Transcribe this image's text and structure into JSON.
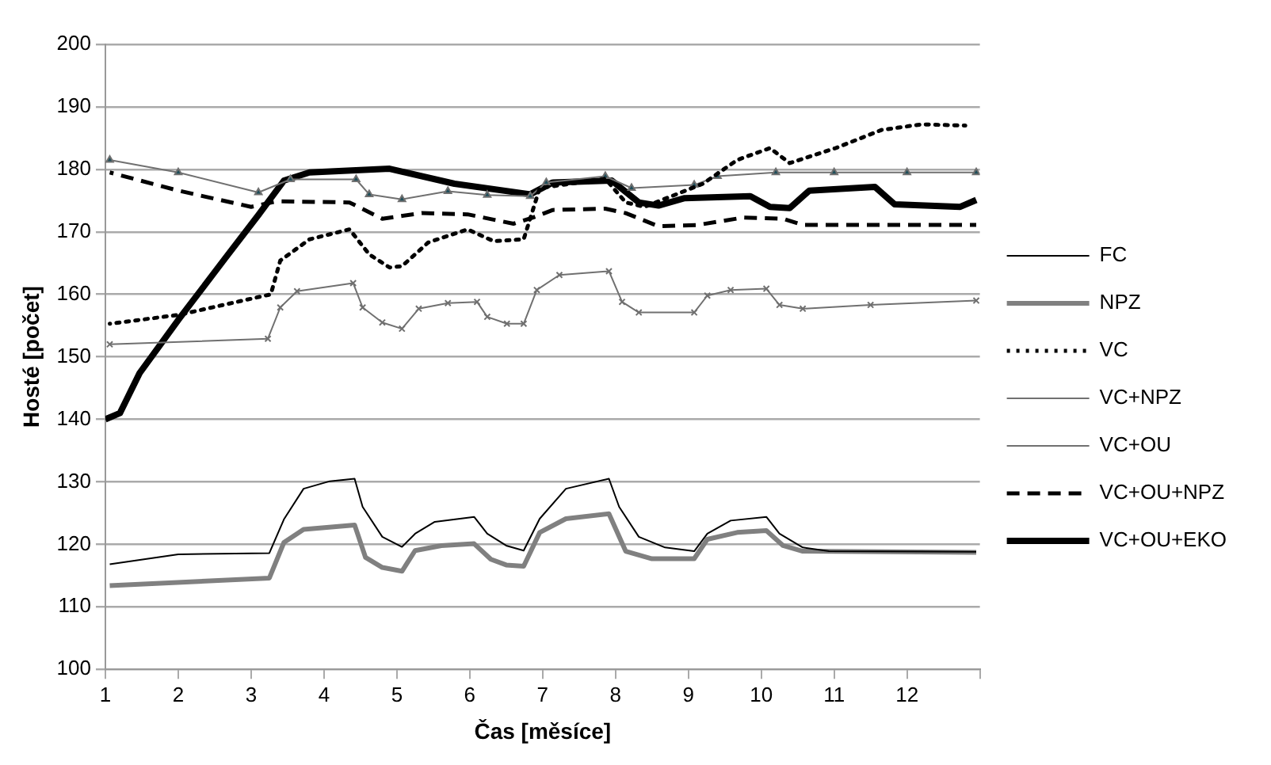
{
  "chart_data": {
    "type": "line",
    "xlabel": "Čas [měsíce]",
    "ylabel": "Hosté [počet]",
    "xlim": [
      1,
      13
    ],
    "ylim": [
      100,
      200
    ],
    "xticks": [
      1,
      2,
      3,
      4,
      5,
      6,
      7,
      8,
      9,
      10,
      11,
      12,
      {
        "value": 13,
        "label": null
      }
    ],
    "yticks": [
      100,
      110,
      120,
      130,
      140,
      150,
      160,
      170,
      180,
      190,
      200
    ],
    "grid": "y",
    "legend": "right",
    "marker": "none",
    "series": [
      {
        "name": "FC",
        "color": "#000000",
        "line_style": "solid",
        "x": [
          1.06,
          2,
          3.25,
          3.45,
          3.72,
          4.08,
          4.42,
          4.53,
          4.8,
          5.07,
          5.25,
          5.52,
          6.06,
          6.24,
          6.5,
          6.74,
          6.96,
          7.32,
          7.91,
          8.05,
          8.32,
          8.68,
          9.08,
          9.26,
          9.58,
          10.07,
          10.25,
          10.57,
          10.93,
          12.95
        ],
        "values": [
          116.8,
          118.4,
          118.6,
          124,
          128.9,
          130.1,
          130.5,
          126,
          121.2,
          119.6,
          121.7,
          123.6,
          124.4,
          121.7,
          119.8,
          119,
          124.1,
          128.9,
          130.5,
          126,
          121.2,
          119.5,
          118.9,
          121.7,
          123.8,
          124.4,
          121.7,
          119.5,
          118.9,
          118.8
        ]
      },
      {
        "name": "NPZ",
        "color": "#808080",
        "line_style": "solid",
        "x": [
          1.06,
          3.25,
          3.45,
          3.72,
          4.42,
          4.57,
          4.8,
          5.07,
          5.25,
          5.61,
          6.06,
          6.29,
          6.5,
          6.74,
          6.96,
          7.32,
          7.91,
          8.14,
          8.5,
          9.08,
          9.26,
          9.67,
          10.07,
          10.3,
          10.57,
          12.95
        ],
        "values": [
          113.4,
          114.6,
          120.3,
          122.4,
          123.1,
          117.9,
          116.3,
          115.7,
          119,
          119.8,
          120.1,
          117.6,
          116.7,
          116.5,
          121.9,
          124.1,
          124.9,
          118.9,
          117.7,
          117.7,
          120.8,
          121.9,
          122.2,
          119.8,
          118.9,
          118.7
        ]
      },
      {
        "name": "VC",
        "color": "#000000",
        "line_style": "dotted",
        "x": [
          1.06,
          2,
          3.27,
          3.4,
          3.8,
          4.35,
          4.62,
          4.9,
          5.07,
          5.43,
          5.97,
          6.33,
          6.74,
          6.96,
          7.86,
          8.14,
          8.4,
          9.2,
          9.67,
          10.12,
          10.39,
          11.02,
          11.65,
          12.2,
          12.8
        ],
        "values": [
          155.3,
          156.7,
          160,
          165.4,
          168.8,
          170.4,
          166.4,
          164.3,
          164.5,
          168.3,
          170.4,
          168.5,
          168.8,
          177,
          178.5,
          174.7,
          174,
          177.7,
          181.5,
          183.4,
          181,
          183.4,
          186.3,
          187.2,
          187
        ]
      },
      {
        "name": "VC+NPZ",
        "color": "#707070",
        "line_style": "solid",
        "marker": "triangle",
        "x": [
          1.06,
          2,
          3.1,
          3.54,
          4.44,
          4.62,
          5.07,
          5.7,
          6.24,
          6.83,
          7.05,
          7.86,
          8.22,
          9.08,
          9.4,
          10.2,
          11,
          12,
          12.95
        ],
        "values": [
          181.5,
          179.5,
          176.3,
          178.4,
          178.4,
          176,
          175.2,
          176.5,
          175.9,
          175.7,
          177.9,
          178.9,
          177,
          177.5,
          178.9,
          179.5,
          179.5,
          179.5,
          179.5
        ]
      },
      {
        "name": "VC+OU",
        "color": "#707070",
        "line_style": "solid",
        "marker": "cross",
        "x": [
          1.06,
          3.23,
          3.4,
          3.63,
          4.4,
          4.53,
          4.8,
          5.07,
          5.3,
          5.7,
          6.1,
          6.24,
          6.51,
          6.74,
          6.92,
          7.23,
          7.91,
          8.09,
          8.32,
          9.08,
          9.26,
          9.58,
          10.07,
          10.25,
          10.57,
          11.5,
          12.95
        ],
        "values": [
          152,
          152.9,
          157.9,
          160.5,
          161.8,
          157.9,
          155.5,
          154.5,
          157.7,
          158.6,
          158.8,
          156.4,
          155.3,
          155.3,
          160.7,
          163.1,
          163.7,
          158.8,
          157.1,
          157.1,
          159.8,
          160.7,
          160.9,
          158.3,
          157.7,
          158.3,
          159
        ]
      },
      {
        "name": "VC+OU+NPZ",
        "color": "#000000",
        "line_style": "dashed",
        "x": [
          1.06,
          2,
          3,
          3.36,
          4.35,
          4.8,
          5.34,
          5.97,
          6.6,
          6.87,
          7.14,
          7.86,
          8.14,
          8.59,
          9.13,
          9.76,
          10.3,
          10.57,
          12.95
        ],
        "values": [
          179.5,
          176.6,
          174,
          174.9,
          174.7,
          172.1,
          173,
          172.8,
          171.3,
          172.3,
          173.5,
          173.7,
          173,
          170.9,
          171.1,
          172.3,
          172.1,
          171.1,
          171.1
        ]
      },
      {
        "name": "VC+OU+EKO",
        "color": "#000000",
        "line_style": "solid",
        "x": [
          1,
          1.2,
          1.47,
          2,
          2.64,
          3.1,
          3.45,
          3.8,
          4.9,
          5.79,
          6.83,
          7.14,
          7.95,
          8.32,
          8.59,
          8.95,
          9.85,
          10.12,
          10.39,
          10.66,
          11.56,
          11.83,
          12.73,
          12.95
        ],
        "values": [
          140,
          141,
          147.4,
          155.9,
          165.7,
          172.7,
          178.2,
          179.5,
          180.1,
          177.7,
          176,
          177.9,
          178.2,
          174.7,
          174.2,
          175.4,
          175.7,
          174,
          173.8,
          176.6,
          177.2,
          174.4,
          174,
          175.1
        ]
      }
    ]
  }
}
